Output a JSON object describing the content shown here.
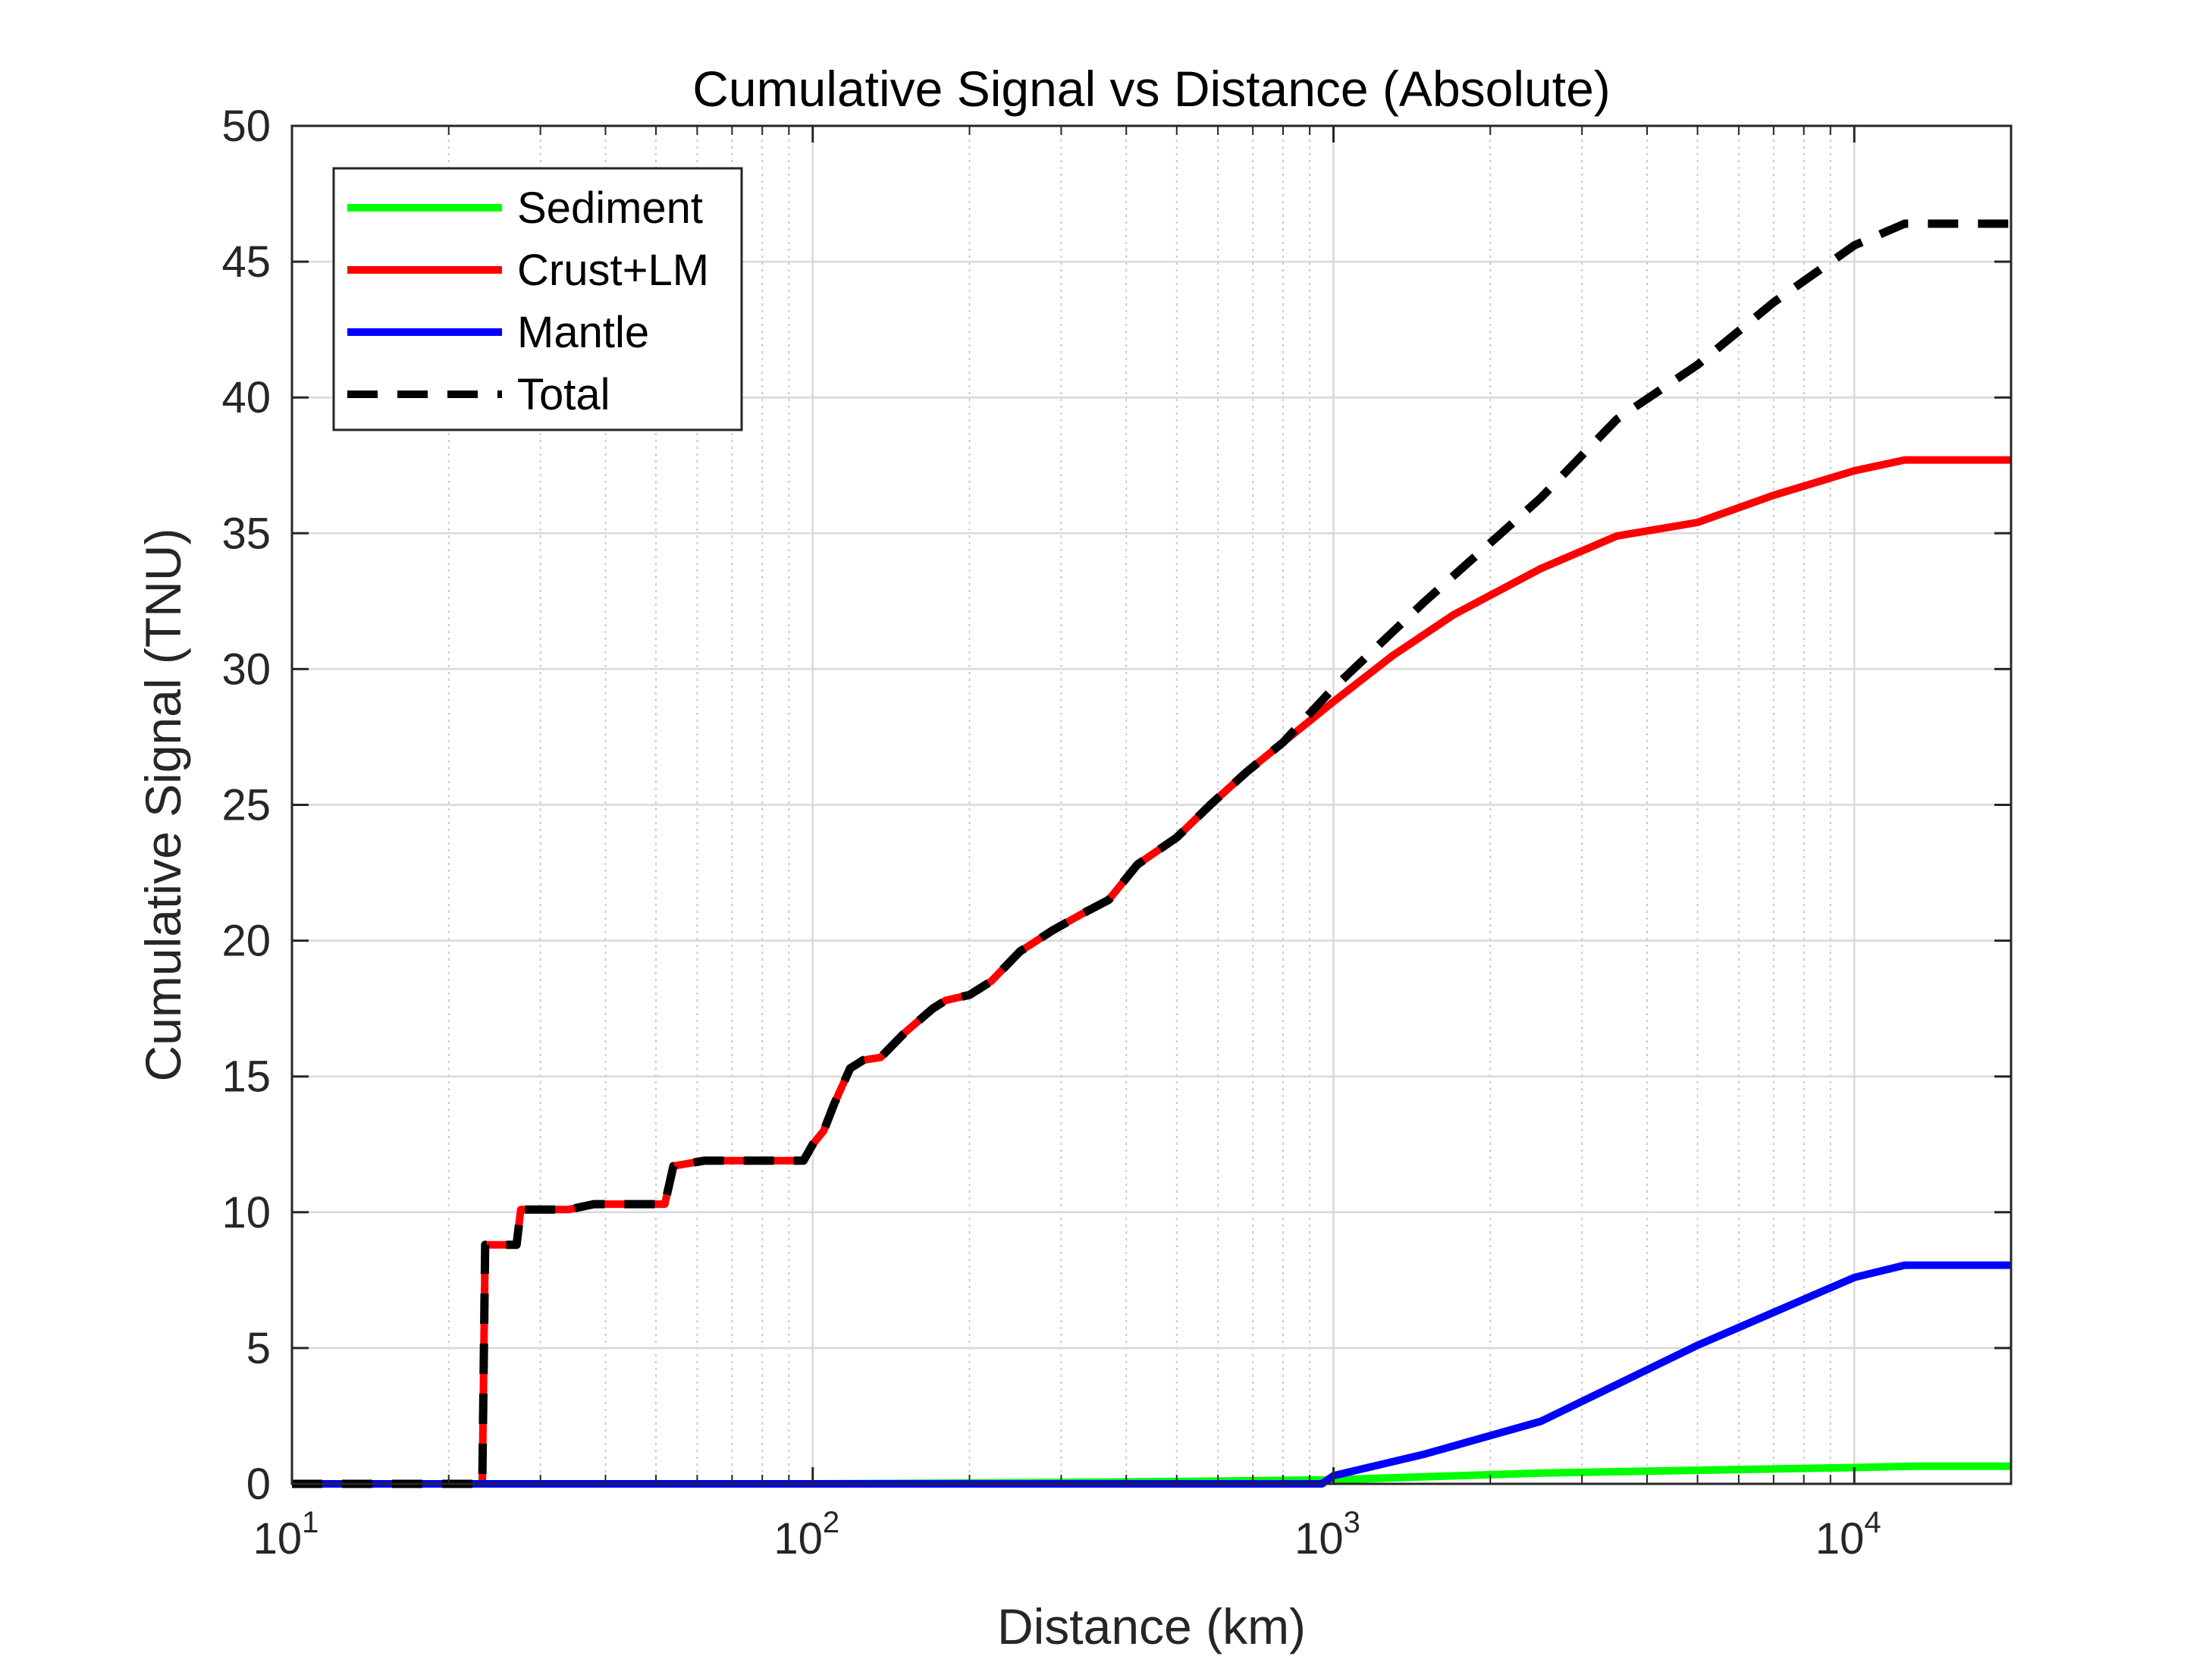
{
  "chart_data": {
    "type": "line",
    "title": "Cumulative Signal vs Distance (Absolute)",
    "xlabel": "Distance (km)",
    "ylabel": "Cumulative Signal (TNU)",
    "xscale": "log",
    "xlim": [
      10,
      20000
    ],
    "ylim": [
      0,
      50
    ],
    "xticks": [
      {
        "value": 10,
        "base": "10",
        "exp": "1"
      },
      {
        "value": 100,
        "base": "10",
        "exp": "2"
      },
      {
        "value": 1000,
        "base": "10",
        "exp": "3"
      },
      {
        "value": 10000,
        "base": "10",
        "exp": "4"
      }
    ],
    "yticks": [
      "0",
      "5",
      "10",
      "15",
      "20",
      "25",
      "30",
      "35",
      "40",
      "45",
      "50"
    ],
    "grid": true,
    "legend_location": "top-left",
    "series": [
      {
        "name": "Sediment",
        "color": "#00ff00",
        "style": "solid",
        "points": [
          [
            10,
            0
          ],
          [
            100,
            0
          ],
          [
            300,
            0.05
          ],
          [
            600,
            0.1
          ],
          [
            1000,
            0.15
          ],
          [
            2500,
            0.4
          ],
          [
            5000,
            0.5
          ],
          [
            10000,
            0.6
          ],
          [
            13000,
            0.65
          ],
          [
            20000,
            0.65
          ]
        ]
      },
      {
        "name": "Crust+LM",
        "color": "#ff0000",
        "style": "solid",
        "points": [
          [
            10,
            0
          ],
          [
            23.2,
            0
          ],
          [
            23.5,
            8.8
          ],
          [
            27,
            8.8
          ],
          [
            27.5,
            10.1
          ],
          [
            34,
            10.1
          ],
          [
            38,
            10.3
          ],
          [
            52,
            10.3
          ],
          [
            54,
            11.7
          ],
          [
            62,
            11.9
          ],
          [
            96,
            11.9
          ],
          [
            100,
            12.5
          ],
          [
            105,
            13
          ],
          [
            110,
            14
          ],
          [
            118,
            15.3
          ],
          [
            125,
            15.6
          ],
          [
            135,
            15.7
          ],
          [
            150,
            16.6
          ],
          [
            170,
            17.5
          ],
          [
            180,
            17.8
          ],
          [
            200,
            18
          ],
          [
            220,
            18.5
          ],
          [
            250,
            19.6
          ],
          [
            290,
            20.4
          ],
          [
            330,
            21
          ],
          [
            370,
            21.5
          ],
          [
            420,
            22.8
          ],
          [
            500,
            23.8
          ],
          [
            580,
            25
          ],
          [
            680,
            26.2
          ],
          [
            800,
            27.3
          ],
          [
            1000,
            28.8
          ],
          [
            1300,
            30.5
          ],
          [
            1700,
            32
          ],
          [
            2500,
            33.7
          ],
          [
            3500,
            34.9
          ],
          [
            5000,
            35.4
          ],
          [
            7000,
            36.4
          ],
          [
            10000,
            37.3
          ],
          [
            12500,
            37.7
          ],
          [
            20000,
            37.7
          ]
        ]
      },
      {
        "name": "Mantle",
        "color": "#0000ff",
        "style": "solid",
        "points": [
          [
            10,
            0
          ],
          [
            950,
            0
          ],
          [
            1000,
            0.3
          ],
          [
            1500,
            1.1
          ],
          [
            2500,
            2.3
          ],
          [
            5000,
            5.1
          ],
          [
            10000,
            7.6
          ],
          [
            12500,
            8.05
          ],
          [
            20000,
            8.05
          ]
        ]
      },
      {
        "name": "Total",
        "color": "#000000",
        "style": "dashed",
        "points": [
          [
            10,
            0
          ],
          [
            23.2,
            0
          ],
          [
            23.5,
            8.8
          ],
          [
            27,
            8.8
          ],
          [
            27.5,
            10.1
          ],
          [
            34,
            10.1
          ],
          [
            38,
            10.3
          ],
          [
            52,
            10.3
          ],
          [
            54,
            11.7
          ],
          [
            62,
            11.9
          ],
          [
            96,
            11.9
          ],
          [
            100,
            12.5
          ],
          [
            105,
            13
          ],
          [
            110,
            14
          ],
          [
            118,
            15.3
          ],
          [
            125,
            15.6
          ],
          [
            135,
            15.7
          ],
          [
            150,
            16.6
          ],
          [
            170,
            17.5
          ],
          [
            180,
            17.8
          ],
          [
            200,
            18
          ],
          [
            220,
            18.5
          ],
          [
            250,
            19.6
          ],
          [
            290,
            20.4
          ],
          [
            330,
            21
          ],
          [
            370,
            21.5
          ],
          [
            420,
            22.8
          ],
          [
            500,
            23.8
          ],
          [
            580,
            25
          ],
          [
            680,
            26.2
          ],
          [
            800,
            27.3
          ],
          [
            1000,
            29.3
          ],
          [
            1500,
            32.5
          ],
          [
            2500,
            36.3
          ],
          [
            3500,
            39.2
          ],
          [
            5000,
            41.2
          ],
          [
            7000,
            43.5
          ],
          [
            10000,
            45.6
          ],
          [
            12500,
            46.4
          ],
          [
            20000,
            46.4
          ]
        ]
      }
    ]
  }
}
